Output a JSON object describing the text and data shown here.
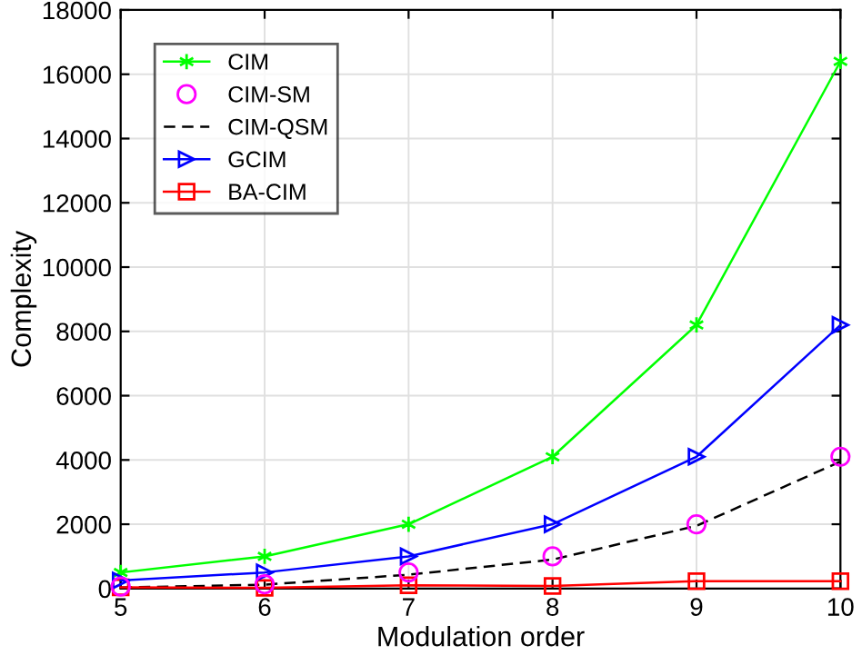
{
  "chart_data": {
    "type": "line",
    "xlabel": "Modulation order",
    "ylabel": "Complexity",
    "x": [
      5,
      6,
      7,
      8,
      9,
      10
    ],
    "series": [
      {
        "name": "CIM",
        "color": "#00ff00",
        "marker": "cross",
        "line_style": "solid",
        "values": [
          500,
          1000,
          2000,
          4100,
          8200,
          16400
        ]
      },
      {
        "name": "CIM-SM",
        "type": "scatter",
        "color": "#ff00ff",
        "marker": "circle",
        "values": [
          60,
          130,
          500,
          1000,
          2000,
          4100
        ]
      },
      {
        "name": "CIM-QSM",
        "color": "#000000",
        "marker": "none",
        "line_style": "dashed",
        "values": [
          30,
          120,
          430,
          900,
          1950,
          3950
        ]
      },
      {
        "name": "GCIM",
        "color": "#0000ff",
        "marker": "triangle",
        "line_style": "solid",
        "values": [
          250,
          500,
          1000,
          2000,
          4100,
          8200
        ]
      },
      {
        "name": "BA-CIM",
        "color": "#ff0000",
        "marker": "square",
        "line_style": "solid",
        "values": [
          40,
          20,
          100,
          80,
          230,
          230
        ]
      }
    ],
    "xlim": [
      5,
      10
    ],
    "xticks": [
      5,
      6,
      7,
      8,
      9,
      10
    ],
    "ylim": [
      0,
      18000
    ],
    "yticks": [
      0,
      2000,
      4000,
      6000,
      8000,
      10000,
      12000,
      14000,
      16000,
      18000
    ],
    "grid": true,
    "legend": "top left"
  }
}
